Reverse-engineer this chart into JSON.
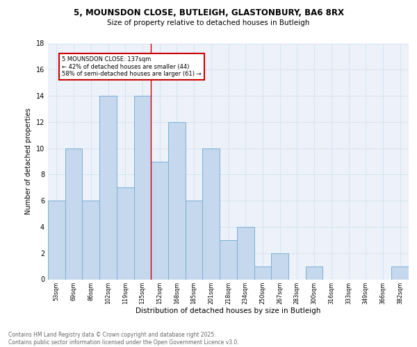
{
  "title1": "5, MOUNSDON CLOSE, BUTLEIGH, GLASTONBURY, BA6 8RX",
  "title2": "Size of property relative to detached houses in Butleigh",
  "xlabel": "Distribution of detached houses by size in Butleigh",
  "ylabel": "Number of detached properties",
  "bar_labels": [
    "53sqm",
    "69sqm",
    "86sqm",
    "102sqm",
    "119sqm",
    "135sqm",
    "152sqm",
    "168sqm",
    "185sqm",
    "201sqm",
    "218sqm",
    "234sqm",
    "250sqm",
    "267sqm",
    "283sqm",
    "300sqm",
    "316sqm",
    "333sqm",
    "349sqm",
    "366sqm",
    "382sqm"
  ],
  "bar_values": [
    6,
    10,
    6,
    14,
    7,
    14,
    9,
    12,
    6,
    10,
    3,
    4,
    1,
    2,
    0,
    1,
    0,
    0,
    0,
    0,
    1
  ],
  "bar_color": "#c5d8ed",
  "bar_edge_color": "#7bafd4",
  "grid_color": "#d8e4f0",
  "annotation_text": "5 MOUNSDON CLOSE: 137sqm\n← 42% of detached houses are smaller (44)\n58% of semi-detached houses are larger (61) →",
  "annotation_box_edge": "#cc0000",
  "vline_x": 5.5,
  "vline_color": "#cc0000",
  "ylim": [
    0,
    18
  ],
  "yticks": [
    0,
    2,
    4,
    6,
    8,
    10,
    12,
    14,
    16,
    18
  ],
  "footer_text": "Contains HM Land Registry data © Crown copyright and database right 2025.\nContains public sector information licensed under the Open Government Licence v3.0.",
  "bg_color": "#edf2fa"
}
